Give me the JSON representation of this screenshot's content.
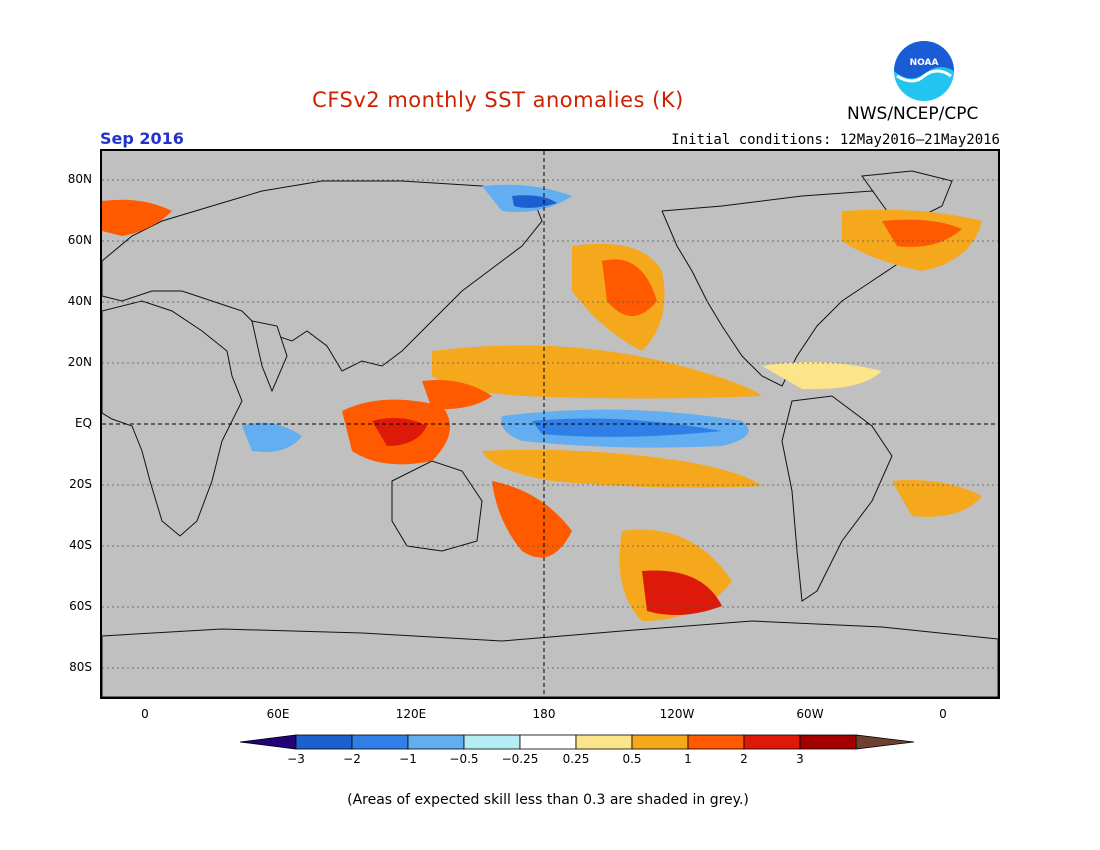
{
  "title": "CFSv2 monthly SST anomalies (K)",
  "agency": "NWS/NCEP/CPC",
  "logo_text": "NOAA",
  "month": "Sep 2016",
  "initial_conditions": "Initial conditions: 12May2016–21May2016",
  "footnote": "(Areas of expected skill less than 0.3 are shaded in grey.)",
  "colors": {
    "title": "#cc2200",
    "month": "#2233cc",
    "grey_mask": "#c0c0c0",
    "logo_blue": "#1a5bd6",
    "logo_cyan": "#22c4f0"
  },
  "map": {
    "lat_labels": [
      "80N",
      "60N",
      "40N",
      "20N",
      "EQ",
      "20S",
      "40S",
      "60S",
      "80S"
    ],
    "lon_labels": [
      "0",
      "60E",
      "120E",
      "180",
      "120W",
      "60W",
      "0"
    ]
  },
  "colorbar": {
    "tick_labels": [
      "−3",
      "−2",
      "−1",
      "−0.5",
      "−0.25",
      "0.25",
      "0.5",
      "1",
      "2",
      "3"
    ],
    "colors": [
      "#24007a",
      "#1c5fcf",
      "#2f7fe6",
      "#62aef0",
      "#b4eef4",
      "#ffffff",
      "#fbe48a",
      "#f6a81c",
      "#ff5a00",
      "#dd1a0a",
      "#a50000",
      "#6e4032"
    ]
  }
}
